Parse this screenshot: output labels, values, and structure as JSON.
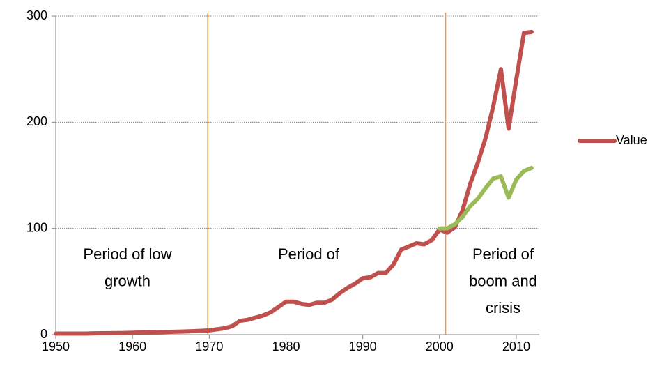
{
  "chart_data": {
    "type": "line",
    "x": [
      1950,
      1951,
      1952,
      1953,
      1954,
      1955,
      1956,
      1957,
      1958,
      1959,
      1960,
      1961,
      1962,
      1963,
      1964,
      1965,
      1966,
      1967,
      1968,
      1969,
      1970,
      1971,
      1972,
      1973,
      1974,
      1975,
      1976,
      1977,
      1978,
      1979,
      1980,
      1981,
      1982,
      1983,
      1984,
      1985,
      1986,
      1987,
      1988,
      1989,
      1990,
      1991,
      1992,
      1993,
      1994,
      1995,
      1996,
      1997,
      1998,
      1999,
      2000,
      2001,
      2002,
      2003,
      2004,
      2005,
      2006,
      2007,
      2008,
      2009,
      2010,
      2011,
      2012
    ],
    "series": [
      {
        "name": "Value",
        "color": "#c0504d",
        "values": [
          1,
          1,
          1,
          1,
          1,
          1.2,
          1.3,
          1.4,
          1.5,
          1.6,
          1.8,
          2,
          2.1,
          2.2,
          2.4,
          2.6,
          2.8,
          3,
          3.3,
          3.6,
          4,
          5,
          6,
          8,
          13,
          14,
          16,
          18,
          21,
          26,
          31,
          31,
          29,
          28,
          30,
          30,
          33,
          39,
          44,
          48,
          53,
          54,
          58,
          58,
          66,
          80,
          83,
          86,
          85,
          89,
          99,
          96,
          101,
          117,
          142,
          162,
          185,
          215,
          250,
          194,
          240,
          284,
          285
        ]
      },
      {
        "color": "#9bbb59",
        "values": [
          null,
          null,
          null,
          null,
          null,
          null,
          null,
          null,
          null,
          null,
          null,
          null,
          null,
          null,
          null,
          null,
          null,
          null,
          null,
          null,
          null,
          null,
          null,
          null,
          null,
          null,
          null,
          null,
          null,
          null,
          null,
          null,
          null,
          null,
          null,
          null,
          null,
          null,
          null,
          null,
          null,
          null,
          null,
          null,
          null,
          null,
          null,
          null,
          null,
          null,
          100,
          100,
          104,
          111,
          121,
          128,
          138,
          147,
          149,
          129,
          146,
          154,
          157
        ]
      }
    ],
    "xlim": [
      1950,
      2013
    ],
    "xticks": [
      1950,
      1960,
      1970,
      1980,
      1990,
      2000,
      2010
    ],
    "ylim": [
      0,
      300
    ],
    "yticks": [
      0,
      100,
      200,
      300
    ],
    "grid": true,
    "vlines": [
      1969.8,
      2000.8
    ],
    "vline_color": "#f79646",
    "annotations": [
      [
        "Period of low",
        "growth"
      ],
      [
        "Period of"
      ],
      [
        "Period of",
        "boom and",
        "crisis"
      ]
    ],
    "legend": "right"
  }
}
